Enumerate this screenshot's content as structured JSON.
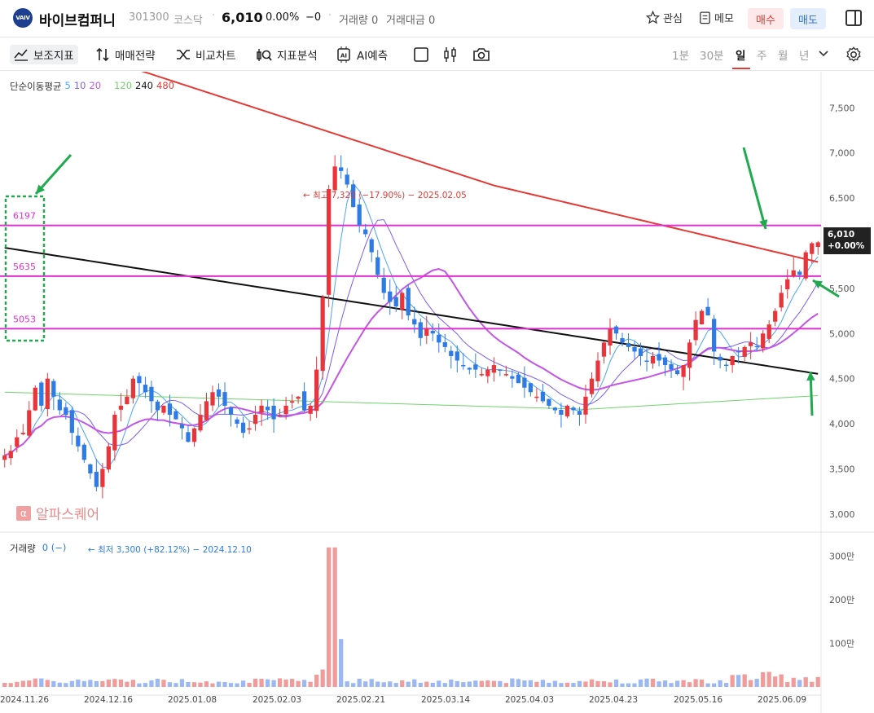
{
  "header": {
    "logo_text": "VAIV",
    "name": "바이브컴퍼니",
    "code": "301300",
    "market": "코스닥",
    "price": "6,010",
    "change_pct": "0.00%",
    "change_val": "−0",
    "volume": "거래량 0",
    "amount": "거래대금 0",
    "watch_label": "관심",
    "memo_label": "메모",
    "buy_label": "매수",
    "sell_label": "매도"
  },
  "toolbar": {
    "indicator_label": "보조지표",
    "strategy_label": "매매전략",
    "compare_label": "비교차트",
    "analysis_label": "지표분석",
    "ai_label": "AI예측",
    "periods": [
      "1분",
      "30분",
      "일",
      "주",
      "월",
      "년"
    ],
    "active_period": "일"
  },
  "legend": {
    "title": "단순이동평균",
    "ma": [
      {
        "label": "5",
        "color": "#4aa3ff"
      },
      {
        "label": "10",
        "color": "#7b5cf0"
      },
      {
        "label": "20",
        "color": "#c455e6"
      },
      {
        "label": "120",
        "color": "#6fd36a"
      },
      {
        "label": "240",
        "color": "#111111"
      },
      {
        "label": "480",
        "color": "#e53935"
      }
    ]
  },
  "annotations": {
    "high": "최고 7,320 (−17.90%) − 2025.02.05",
    "low": "최저 3,300 (+82.12%) − 2024.12.10",
    "levels": [
      "6197",
      "5635",
      "5053"
    ]
  },
  "price_tag": {
    "price": "6,010",
    "pct": "+0.00%"
  },
  "watermark": "알파스퀘어",
  "volume_legend": {
    "label": "거래량",
    "value": "0 (−)"
  },
  "colors": {
    "up": "#e8353b",
    "down": "#2e7be6",
    "level": "#e030d0",
    "arrow": "#1faa4e"
  },
  "chart_data": {
    "type": "candlestick",
    "ylim": [
      2800,
      7900
    ],
    "yticks": [
      "7,500",
      "7,000",
      "6,500",
      "6,000",
      "5,500",
      "5,000",
      "4,500",
      "4,000",
      "3,500",
      "3,000"
    ],
    "xticks": [
      "2024.11.26",
      "2024.12.16",
      "2025.01.08",
      "2025.02.03",
      "2025.02.21",
      "2025.03.14",
      "2025.04.03",
      "2025.04.23",
      "2025.05.16",
      "2025.06.09"
    ],
    "volume_ticks": [
      "300만",
      "200만",
      "100만"
    ],
    "levels": [
      6197,
      5635,
      5053
    ],
    "close": [
      3650,
      3700,
      3850,
      3900,
      4150,
      4400,
      4200,
      4500,
      4300,
      4150,
      4100,
      3900,
      3750,
      3600,
      3450,
      3300,
      3500,
      3750,
      4100,
      4200,
      4300,
      4500,
      4450,
      4350,
      4250,
      4150,
      4200,
      4100,
      4050,
      3950,
      3800,
      3950,
      4100,
      4250,
      4350,
      4300,
      4200,
      4100,
      4000,
      3900,
      3950,
      4100,
      4200,
      4150,
      4050,
      4100,
      4200,
      4250,
      4300,
      4150,
      4200,
      4600,
      5400,
      6600,
      6850,
      6800,
      6650,
      6400,
      6200,
      6100,
      5900,
      5650,
      5450,
      5350,
      5300,
      5450,
      5200,
      5100,
      4950,
      5050,
      5000,
      4900,
      4850,
      4750,
      4700,
      4650,
      4600,
      4600,
      4550,
      4600,
      4650,
      4600,
      4550,
      4500,
      4450,
      4400,
      4350,
      4300,
      4250,
      4200,
      4150,
      4100,
      4200,
      4150,
      4100,
      4300,
      4500,
      4700,
      4900,
      5050,
      5000,
      4900,
      4850,
      4800,
      4750,
      4700,
      4750,
      4700,
      4650,
      4600,
      4550,
      4650,
      4900,
      5150,
      5250,
      5200,
      4800,
      4700,
      4650,
      4750,
      4800,
      4850,
      4900,
      4850,
      5000,
      5100,
      5250,
      5450,
      5600,
      5700,
      5650,
      5900,
      6000,
      6010
    ]
  }
}
